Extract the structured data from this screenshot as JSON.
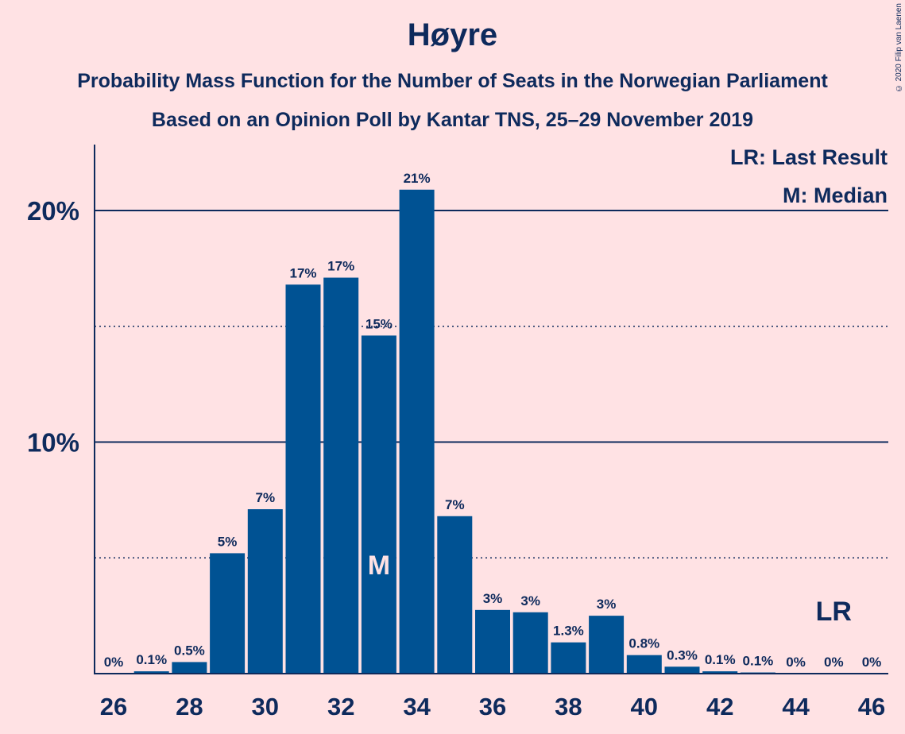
{
  "chart_data": {
    "type": "bar",
    "title": "Høyre",
    "subtitle": "Probability Mass Function for the Number of Seats in the Norwegian Parliament",
    "subtitle2": "Based on an Opinion Poll by Kantar TNS, 25–29 November 2019",
    "copyright": "© 2020 Filip van Laenen",
    "legend": {
      "last_result": "LR: Last Result",
      "median": "M: Median",
      "placement": "top-right"
    },
    "x": [
      26,
      27,
      28,
      29,
      30,
      31,
      32,
      33,
      34,
      35,
      36,
      37,
      38,
      39,
      40,
      41,
      42,
      43,
      44,
      45,
      46
    ],
    "values": [
      0,
      0.1,
      0.5,
      5.2,
      7.1,
      16.8,
      17.1,
      14.6,
      20.9,
      6.8,
      2.75,
      2.65,
      1.35,
      2.5,
      0.8,
      0.3,
      0.1,
      0.05,
      0,
      0,
      0
    ],
    "value_labels": [
      "0%",
      "0.1%",
      "0.5%",
      "5%",
      "7%",
      "17%",
      "17%",
      "15%",
      "21%",
      "7%",
      "3%",
      "3%",
      "1.3%",
      "3%",
      "0.8%",
      "0.3%",
      "0.1%",
      "0.1%",
      "0%",
      "0%",
      "0%"
    ],
    "x_tick_labels": [
      "26",
      "28",
      "30",
      "32",
      "34",
      "36",
      "38",
      "40",
      "42",
      "44",
      "46"
    ],
    "y_ticks": [
      {
        "value": 10,
        "label": "10%",
        "style": "solid"
      },
      {
        "value": 20,
        "label": "20%",
        "style": "solid"
      }
    ],
    "y_minor_gridlines": [
      5,
      15
    ],
    "ylim": [
      0,
      22.5
    ],
    "median": {
      "x": 33,
      "label": "M"
    },
    "last_result": {
      "x": 45,
      "label": "LR"
    },
    "colors": {
      "background": "#FFE2E4",
      "bar": "#005293",
      "text": "#0E2A5C"
    }
  }
}
